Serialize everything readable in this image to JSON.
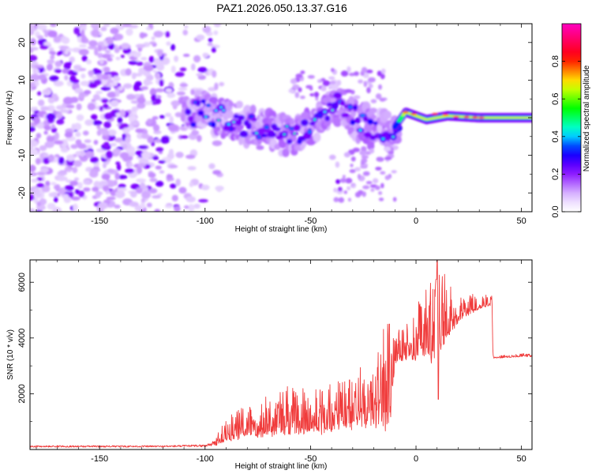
{
  "title": "PAZ1.2026.050.13.37.G16",
  "chart_data": [
    {
      "type": "heatmap",
      "name": "spectrogram",
      "xlabel": "Height of straight line (km)",
      "ylabel": "Frequency (Hz)",
      "xlim": [
        -183,
        55
      ],
      "ylim": [
        -25,
        25
      ],
      "xticks": [
        -150,
        -100,
        -50,
        0,
        50
      ],
      "yticks": [
        -20,
        -10,
        0,
        10,
        20
      ],
      "colorbar": {
        "label": "Normalized spectral amplitude",
        "range": [
          0.0,
          1.0
        ],
        "ticks": [
          0.0,
          0.2,
          0.4,
          0.6,
          0.8
        ],
        "colors": [
          "#ffffff",
          "#e3ccff",
          "#8000ff",
          "#0000ff",
          "#00ffff",
          "#00ff00",
          "#ffff00",
          "#ff0000",
          "#ff00c0"
        ]
      },
      "ridge": {
        "description_points": [
          {
            "x": -105,
            "y": 2.5,
            "amp": 0.2
          },
          {
            "x": -90,
            "y": 0,
            "amp": 0.25
          },
          {
            "x": -75,
            "y": -3,
            "amp": 0.3
          },
          {
            "x": -60,
            "y": -5,
            "amp": 0.3
          },
          {
            "x": -45,
            "y": -1,
            "amp": 0.35
          },
          {
            "x": -38,
            "y": 4,
            "amp": 0.35
          },
          {
            "x": -25,
            "y": -2,
            "amp": 0.4
          },
          {
            "x": -12,
            "y": -4,
            "amp": 0.5
          },
          {
            "x": -5,
            "y": 1.5,
            "amp": 0.85
          },
          {
            "x": 5,
            "y": -0.5,
            "amp": 0.7
          },
          {
            "x": 15,
            "y": 0.5,
            "amp": 0.85
          },
          {
            "x": 30,
            "y": 0,
            "amp": 0.9
          },
          {
            "x": 55,
            "y": 0,
            "amp": 0.6
          }
        ]
      }
    },
    {
      "type": "line",
      "name": "snr",
      "xlabel": "Height of straight line (km)",
      "ylabel": "SNR (10 * v/v)",
      "xlim": [
        -183,
        55
      ],
      "ylim": [
        0,
        6800
      ],
      "xticks": [
        -150,
        -100,
        -50,
        0,
        50
      ],
      "yticks": [
        2000,
        4000,
        6000
      ],
      "color": "#f03c3c",
      "envelope": {
        "x": [
          -183,
          -150,
          -120,
          -100,
          -95,
          -90,
          -80,
          -70,
          -60,
          -50,
          -40,
          -30,
          -20,
          -15,
          -13,
          -12,
          -10,
          -5,
          0,
          5,
          10,
          15,
          20,
          25,
          30,
          36,
          36.5,
          40,
          50,
          55
        ],
        "base": [
          100,
          100,
          100,
          120,
          200,
          450,
          700,
          800,
          900,
          900,
          1000,
          1200,
          1300,
          1500,
          1700,
          1700,
          3300,
          3400,
          3600,
          3800,
          3900,
          4400,
          4800,
          5000,
          5150,
          5250,
          3300,
          3300,
          3350,
          3350
        ],
        "noise": [
          60,
          60,
          60,
          80,
          200,
          400,
          700,
          800,
          900,
          900,
          1000,
          1100,
          1200,
          2200,
          2000,
          1500,
          600,
          700,
          1000,
          1400,
          2000,
          1000,
          600,
          400,
          300,
          200,
          60,
          60,
          60,
          60
        ]
      }
    }
  ]
}
